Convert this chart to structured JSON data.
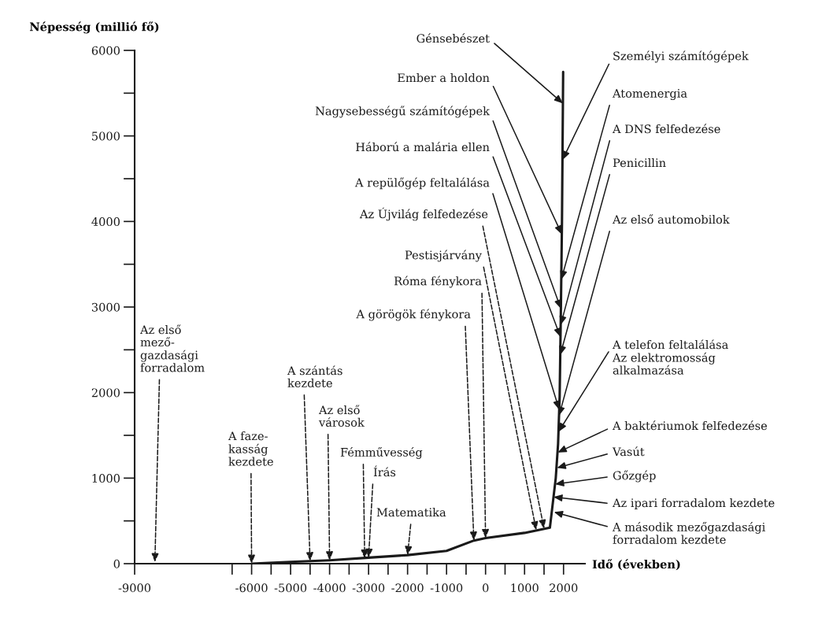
{
  "chart_data": {
    "type": "line",
    "xlabel": "Idő (években)",
    "ylabel": "Népesség (millió fő)",
    "x": [
      -6000,
      -5000,
      -4000,
      -3000,
      -2000,
      -1000,
      -300,
      0,
      1000,
      1650,
      1800,
      1860,
      1900,
      1930,
      1960,
      1990
    ],
    "series": [
      {
        "color": "#1a1a1a",
        "values": [
          0,
          20,
          40,
          70,
          100,
          150,
          270,
          300,
          360,
          420,
          1000,
          1400,
          1950,
          2900,
          4000,
          5750
        ]
      }
    ],
    "xlim": [
      -9000,
      2550
    ],
    "ylim": [
      0,
      6000
    ],
    "xticks": [
      -9000,
      {
        "value": -6500,
        "label": null
      },
      -6000,
      {
        "value": -5500,
        "label": null
      },
      -5000,
      {
        "value": -4500,
        "label": null
      },
      -4000,
      {
        "value": -3500,
        "label": null
      },
      -3000,
      {
        "value": -2500,
        "label": null
      },
      -2000,
      {
        "value": -1500,
        "label": null
      },
      -1000,
      {
        "value": -500,
        "label": null
      },
      0,
      {
        "value": 500,
        "label": null
      },
      1000,
      {
        "value": 1500,
        "label": null
      },
      2000
    ],
    "yticks": [
      0,
      {
        "value": 500,
        "label": null
      },
      1000,
      {
        "value": 1500,
        "label": null
      },
      2000,
      {
        "value": 2500,
        "label": null
      },
      3000,
      {
        "value": 3500,
        "label": null
      },
      4000,
      {
        "value": 4500,
        "label": null
      },
      5000,
      {
        "value": 5500,
        "label": null
      },
      6000
    ],
    "annotations": [
      "Az első\nmező-\ngazdasági\nforradalom",
      {
        "text": "A faze-\nkasság\nkezdete",
        "x": -6000,
        "y": 0
      },
      {
        "text": "A szántás\nkezdete",
        "x": -4500,
        "y": 30
      },
      {
        "text": "Az első\nvárosok",
        "x": -4000,
        "y": 40
      },
      {
        "text": "Fémművesség",
        "x": -3100,
        "y": 60
      },
      {
        "text": "Írás",
        "x": -3000,
        "y": 70
      },
      {
        "text": "Matematika",
        "x": -2000,
        "y": 100
      },
      {
        "text": "A görögök fénykora",
        "x": -300,
        "y": 270
      },
      {
        "text": "Róma fénykora",
        "x": 0,
        "y": 300
      },
      {
        "text": "Pestisjárvány",
        "x": 1300,
        "y": 390
      },
      {
        "text": "Az Újvilág felfedezése",
        "x": 1500,
        "y": 410
      },
      {
        "text": "A repülőgép feltalálása",
        "x": 1889,
        "y": 1800
      },
      {
        "text": "Háború a malária ellen",
        "x": 1922,
        "y": 2650
      },
      {
        "text": "Nagysebességű számítógépek",
        "x": 1932,
        "y": 2980
      },
      {
        "text": "Ember a holdon",
        "x": 1956,
        "y": 3850
      },
      {
        "text": "Génsebészet",
        "x": 1984,
        "y": 5380
      },
      {
        "text": "Személyi számítógépek",
        "x": 1972,
        "y": 4720
      },
      {
        "text": "Atomenergia",
        "x": 1941,
        "y": 3320
      },
      {
        "text": "A DNS felfedezése",
        "x": 1927,
        "y": 2790
      },
      {
        "text": "Penicillin",
        "x": 1915,
        "y": 2440
      },
      {
        "text": "Az első automobilok",
        "x": 1884,
        "y": 1730
      },
      {
        "text": "A telefon feltalálása\nAz elektromosság\nalkalmazása",
        "x": 1870,
        "y": 1540
      },
      {
        "text": "A baktériumok felfedezése",
        "x": 1850,
        "y": 1300
      },
      {
        "text": "Vasút",
        "x": 1830,
        "y": 1120
      },
      {
        "text": "Gőzgép",
        "x": 1783,
        "y": 930
      },
      {
        "text": "Az ipari forradalom kezdete",
        "x": 1743,
        "y": 780
      },
      {
        "text": "A második mezőgazdasági\nforradalom kezdete",
        "x": 1700,
        "y": 610
      }
    ]
  }
}
